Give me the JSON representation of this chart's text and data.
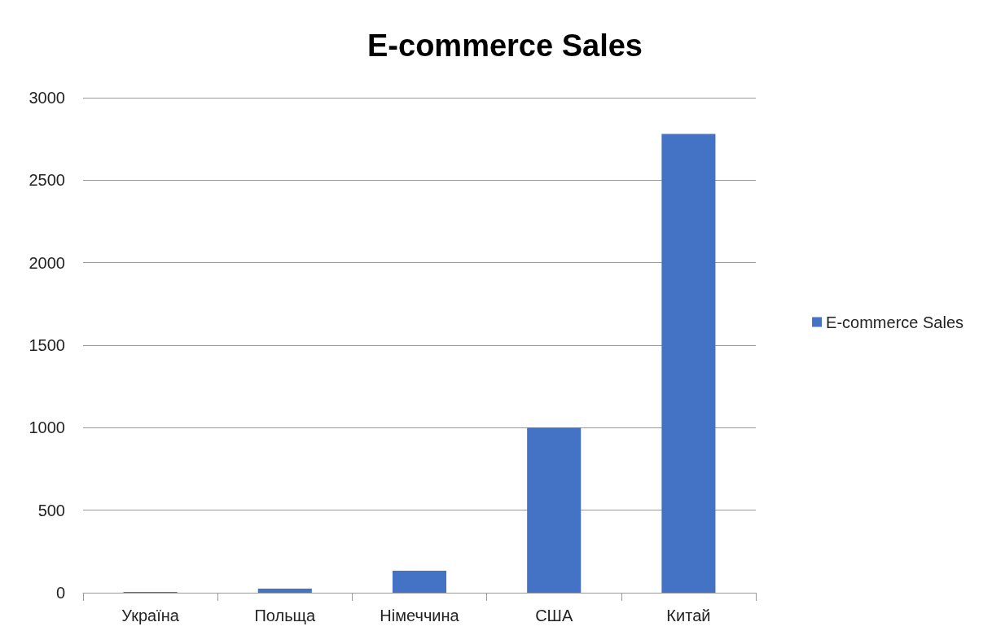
{
  "chart_data": {
    "type": "bar",
    "title": "E-commerce Sales",
    "categories": [
      "Україна",
      "Польща",
      "Німеччина",
      "США",
      "Китай"
    ],
    "series": [
      {
        "name": "E-commerce Sales",
        "color": "#4472c4",
        "values": [
          5,
          25,
          133,
          1000,
          2780
        ]
      }
    ],
    "ylim": [
      0,
      3000
    ],
    "yticks": [
      0,
      500,
      1000,
      1500,
      2000,
      2500,
      3000
    ],
    "grid": "y",
    "legend": "right"
  }
}
